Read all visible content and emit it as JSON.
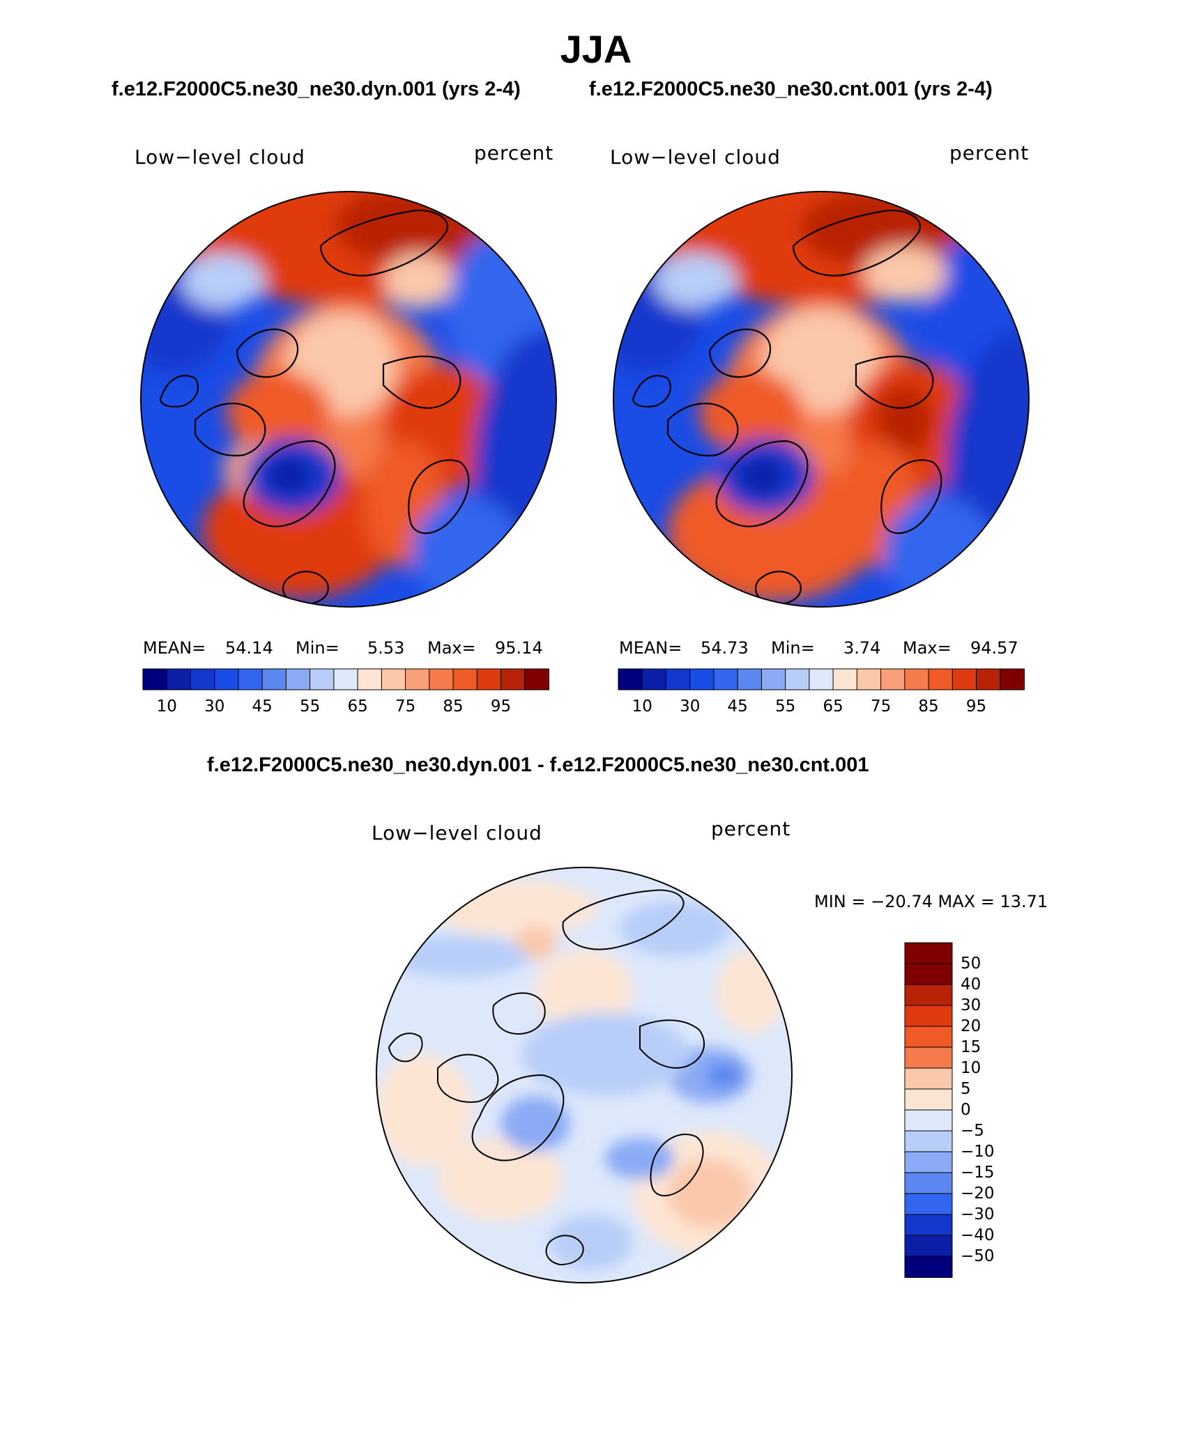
{
  "figure": {
    "season": "JJA",
    "subtitle_left": "f.e12.F2000C5.ne30_ne30.dyn.001 (yrs 2-4)",
    "subtitle_right": "f.e12.F2000C5.ne30_ne30.cnt.001 (yrs 2-4)",
    "diff_title": "f.e12.F2000C5.ne30_ne30.dyn.001 - f.e12.F2000C5.ne30_ne30.cnt.001"
  },
  "panels": [
    {
      "variable": "Low−level cloud",
      "units": "percent",
      "mean_label": "MEAN=",
      "mean": "54.14",
      "min_label": "Min=",
      "min": "5.53",
      "max_label": "Max=",
      "max": "95.14"
    },
    {
      "variable": "Low−level cloud",
      "units": "percent",
      "mean_label": "MEAN=",
      "mean": "54.73",
      "min_label": "Min=",
      "min": "3.74",
      "max_label": "Max=",
      "max": "94.57"
    }
  ],
  "diff_panel": {
    "variable": "Low−level cloud",
    "units": "percent",
    "minmax_text": "MIN = −20.74 MAX =   13.71",
    "min": -20.74,
    "max": 13.71
  },
  "colorbar_main": {
    "colors": [
      "#00007f",
      "#0a1fa6",
      "#1438cc",
      "#1a4ce6",
      "#3366ee",
      "#5a87f0",
      "#8aaaf5",
      "#b8cdf8",
      "#dde8fb",
      "#fde5d4",
      "#fbc8aa",
      "#f8a07a",
      "#f57a4c",
      "#ef5a26",
      "#e03a10",
      "#b82206",
      "#800000"
    ],
    "tick_labels": [
      "10",
      "30",
      "45",
      "55",
      "65",
      "75",
      "85",
      "95"
    ]
  },
  "colorbar_diff": {
    "colors": [
      "#800000",
      "#b82206",
      "#e03a10",
      "#ef5a26",
      "#f57a4c",
      "#fbc8aa",
      "#fde5d4",
      "#dde8fb",
      "#b8cdf8",
      "#8aaaf5",
      "#5a87f0",
      "#3366ee",
      "#1438cc",
      "#0a1fa6",
      "#00007f"
    ],
    "tick_labels": [
      "50",
      "40",
      "30",
      "20",
      "15",
      "10",
      "5",
      "0",
      "−5",
      "−10",
      "−15",
      "−20",
      "−30",
      "−40",
      "−50"
    ]
  }
}
